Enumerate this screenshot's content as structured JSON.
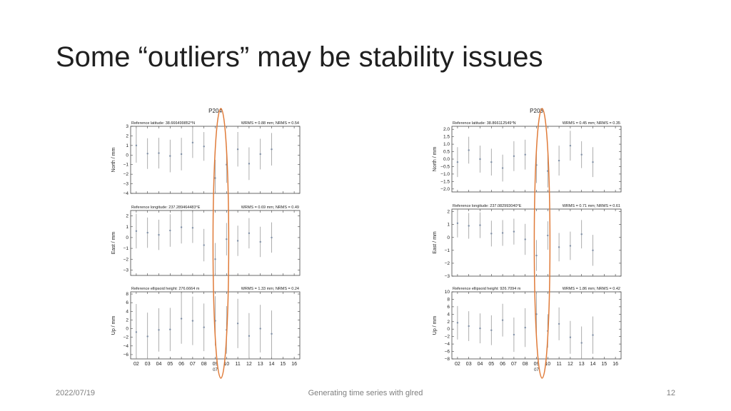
{
  "slide": {
    "title": "Some “outliers” may be stability issues",
    "footer_date": "2022/07/19",
    "footer_center": "Generating time series with glred",
    "footer_page": "12"
  },
  "colors": {
    "frame": "#444444",
    "error_bar": "#9a9a9a",
    "point": "#7f8fa6",
    "highlight_ellipse": "#e07b39"
  },
  "chart_data": [
    {
      "type": "scatter",
      "title": "P204",
      "x_tick_labels": [
        "02",
        "03",
        "04",
        "05",
        "06",
        "07",
        "08",
        "09",
        "10",
        "11",
        "12",
        "13",
        "14",
        "15",
        "16"
      ],
      "x_sublabel": "07",
      "highlight": "ellipse around 09/10",
      "panels": [
        {
          "ylabel": "North / mm",
          "ref_label": "Reference latitude: 38.666499852°N",
          "stats_label": "WRMS = 0.88 mm; NRMS = 0.54",
          "ylim": [
            -4,
            3
          ],
          "yticks": [
            3,
            2,
            1,
            0,
            -1,
            -2,
            -3,
            -4
          ],
          "ytick_labels": [
            "3",
            "2",
            "1",
            "0",
            "−1",
            "−2",
            "−3",
            "−4"
          ],
          "x": [
            2,
            3,
            4,
            5,
            6,
            7,
            8,
            9,
            10,
            11,
            12,
            13,
            14,
            15
          ],
          "values": [
            1.0,
            0.15,
            0.2,
            -0.1,
            0.1,
            1.3,
            0.9,
            -2.4,
            -1.0,
            0.6,
            -0.9,
            0.1,
            0.6,
            null
          ],
          "errors": [
            1.8,
            1.6,
            1.6,
            1.7,
            1.7,
            1.6,
            1.5,
            1.9,
            1.9,
            1.8,
            1.7,
            1.6,
            1.7,
            null
          ]
        },
        {
          "ylabel": "East / mm",
          "ref_label": "Reference longitude: 237.289464483°E",
          "stats_label": "WRMS = 0.69 mm; NRMS = 0.49",
          "ylim": [
            -3.5,
            2.5
          ],
          "yticks": [
            2,
            1,
            0,
            -1,
            -2,
            -3
          ],
          "ytick_labels": [
            "2",
            "1",
            "0",
            "−1",
            "−2",
            "−3"
          ],
          "x": [
            2,
            3,
            4,
            5,
            6,
            7,
            8,
            9,
            10,
            11,
            12,
            13,
            14,
            15
          ],
          "values": [
            0.6,
            0.45,
            0.25,
            0.65,
            0.95,
            0.9,
            -0.7,
            -2.0,
            -0.15,
            -0.3,
            0.4,
            -0.4,
            0.0,
            null
          ],
          "errors": [
            1.6,
            1.4,
            1.4,
            1.5,
            1.5,
            1.4,
            1.5,
            1.5,
            1.5,
            1.4,
            1.4,
            1.4,
            1.4,
            null
          ]
        },
        {
          "ylabel": "Up / mm",
          "ref_label": "Reference ellipsoid height: 276.6664 m",
          "stats_label": "WRMS = 1.33 mm; NRMS = 0.24",
          "ylim": [
            -7,
            8.5
          ],
          "yticks": [
            8,
            6,
            4,
            2,
            0,
            -2,
            -4,
            -6
          ],
          "ytick_labels": [
            "8",
            "6",
            "4",
            "2",
            "0",
            "−2",
            "−4",
            "−6"
          ],
          "x": [
            2,
            3,
            4,
            5,
            6,
            7,
            8,
            9,
            10,
            11,
            12,
            13,
            14,
            15
          ],
          "values": [
            -0.8,
            -1.8,
            -0.3,
            -0.2,
            2.3,
            1.8,
            0.3,
            1.8,
            -0.3,
            1.2,
            -1.7,
            0.0,
            -1.2,
            null
          ],
          "errors": [
            6.5,
            5.5,
            5.0,
            5.0,
            5.8,
            5.6,
            5.5,
            5.7,
            5.5,
            5.7,
            5.3,
            5.5,
            5.4,
            null
          ]
        }
      ]
    },
    {
      "type": "scatter",
      "title": "P203",
      "x_tick_labels": [
        "02",
        "03",
        "04",
        "05",
        "06",
        "07",
        "08",
        "09",
        "10",
        "11",
        "12",
        "13",
        "14",
        "15",
        "16"
      ],
      "x_sublabel": "07",
      "highlight": "ellipse around 09/10",
      "panels": [
        {
          "ylabel": "North / mm",
          "ref_label": "Reference latitude: 38.866112549°N",
          "stats_label": "WRMS = 0.45 mm; NRMS = 0.35",
          "ylim": [
            -2.2,
            2.2
          ],
          "yticks": [
            2.0,
            1.5,
            1.0,
            0.5,
            0.0,
            -0.5,
            -1.0,
            -1.5,
            -2.0
          ],
          "ytick_labels": [
            "2.0",
            "1.5",
            "1.0",
            "0.5",
            "0.0",
            "−0.5",
            "−1.0",
            "−1.5",
            "−2.0"
          ],
          "x": [
            2,
            3,
            4,
            5,
            6,
            7,
            8,
            9,
            10,
            11,
            12,
            13,
            14,
            15
          ],
          "values": [
            -0.2,
            0.6,
            0.0,
            -0.2,
            -0.6,
            0.2,
            0.3,
            -0.4,
            -0.8,
            -0.1,
            0.9,
            0.3,
            -0.2,
            null
          ],
          "errors": [
            1.0,
            0.9,
            0.9,
            0.9,
            0.9,
            1.0,
            1.0,
            1.2,
            1.1,
            1.0,
            1.0,
            0.9,
            1.0,
            null
          ]
        },
        {
          "ylabel": "East / mm",
          "ref_label": "Reference longitude: 237.082993040°E",
          "stats_label": "WRMS = 0.71 mm; NRMS = 0.61",
          "ylim": [
            -3.0,
            2.2
          ],
          "yticks": [
            2,
            1,
            0,
            -1,
            -2,
            -3
          ],
          "ytick_labels": [
            "2",
            "1",
            "0",
            "−1",
            "−2",
            "−3"
          ],
          "x": [
            2,
            3,
            4,
            5,
            6,
            7,
            8,
            9,
            10,
            11,
            12,
            13,
            14,
            15
          ],
          "values": [
            1.1,
            0.9,
            0.95,
            0.3,
            0.35,
            0.45,
            -0.15,
            -1.4,
            0.15,
            -0.75,
            -0.65,
            0.25,
            -1.0,
            null
          ],
          "errors": [
            1.1,
            1.0,
            1.0,
            1.0,
            1.0,
            1.0,
            1.2,
            1.2,
            1.1,
            1.1,
            1.1,
            1.1,
            1.2,
            null
          ]
        },
        {
          "ylabel": "Up / mm",
          "ref_label": "Reference ellipsoid height: 926.7094 m",
          "stats_label": "WRMS = 1.86 mm; NRMS = 0.42",
          "ylim": [
            -8,
            10
          ],
          "yticks": [
            10,
            8,
            6,
            4,
            2,
            0,
            -2,
            -4,
            -6,
            -8
          ],
          "ytick_labels": [
            "10",
            "8",
            "6",
            "4",
            "2",
            "0",
            "−2",
            "−4",
            "−6",
            "−8"
          ],
          "x": [
            2,
            3,
            4,
            5,
            6,
            7,
            8,
            9,
            10,
            11,
            12,
            13,
            14,
            15
          ],
          "values": [
            1.7,
            0.8,
            0.2,
            -0.3,
            2.4,
            -1.5,
            0.4,
            4.0,
            -0.5,
            1.4,
            -2.2,
            -3.7,
            -1.6,
            null
          ],
          "errors": [
            4.5,
            4.0,
            4.0,
            4.0,
            4.4,
            4.6,
            5.2,
            6.0,
            4.5,
            4.4,
            4.4,
            4.4,
            5.0,
            null
          ]
        }
      ]
    }
  ]
}
